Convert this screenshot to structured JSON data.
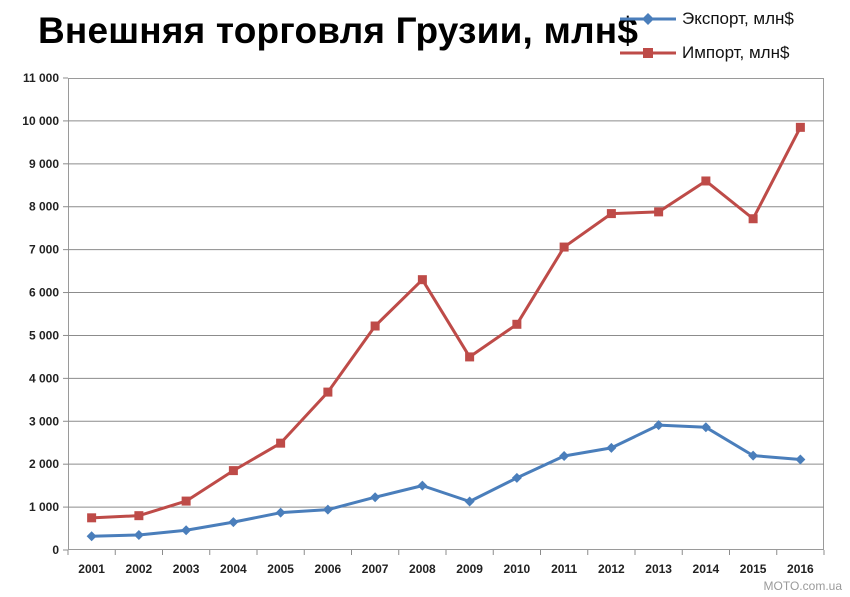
{
  "title": "Внешняя торговля Грузии, млн$",
  "watermark": "MOTO.com.ua",
  "chart_data": {
    "type": "line",
    "title": "Внешняя торговля Грузии, млн$",
    "xlabel": "",
    "ylabel": "",
    "categories": [
      "2001",
      "2002",
      "2003",
      "2004",
      "2005",
      "2006",
      "2007",
      "2008",
      "2009",
      "2010",
      "2011",
      "2012",
      "2013",
      "2014",
      "2015",
      "2016"
    ],
    "ylim": [
      0,
      11000
    ],
    "yticks": [
      "0",
      "1 000",
      "2 000",
      "3 000",
      "4 000",
      "5 000",
      "6 000",
      "7 000",
      "8 000",
      "9 000",
      "10 000",
      "11 000"
    ],
    "grid": true,
    "legend_position": "top-right",
    "series": [
      {
        "name": "Экспорт, млн$",
        "color": "#4a7ebb",
        "marker": "diamond",
        "values": [
          320,
          350,
          460,
          650,
          870,
          940,
          1230,
          1500,
          1130,
          1680,
          2190,
          2380,
          2910,
          2860,
          2200,
          2110
        ]
      },
      {
        "name": "Импорт, млн$",
        "color": "#be4b48",
        "marker": "square",
        "values": [
          750,
          800,
          1140,
          1850,
          2490,
          3680,
          5220,
          6300,
          4500,
          5260,
          7060,
          7840,
          7880,
          8600,
          7720,
          9850
        ]
      }
    ]
  }
}
